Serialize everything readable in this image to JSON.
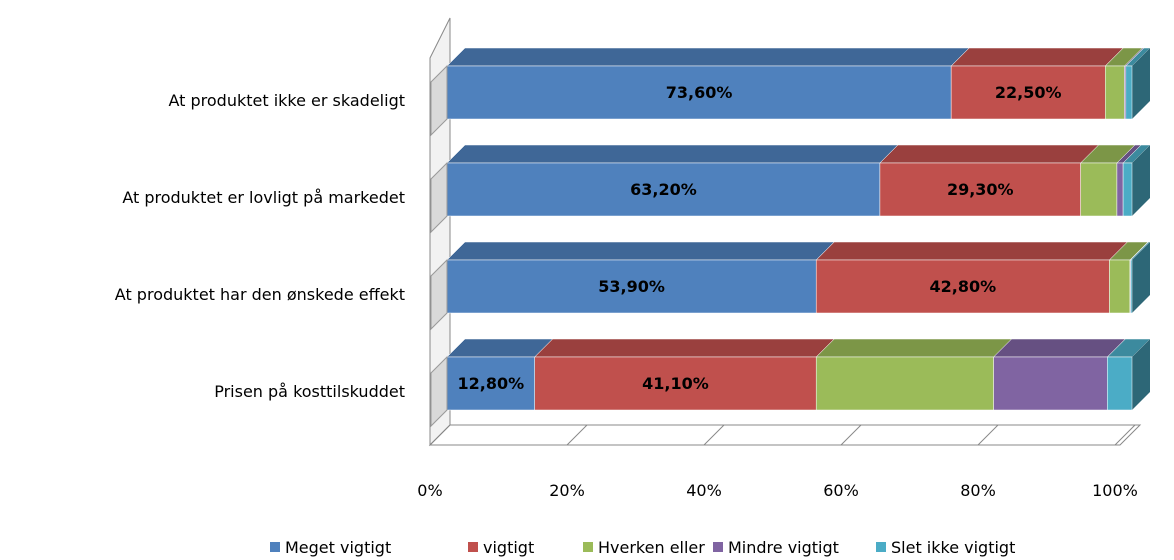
{
  "chart_data": {
    "type": "bar",
    "orientation": "horizontal",
    "stacked": true,
    "three_d": true,
    "categories": [
      "At produktet ikke er skadeligt",
      "At produktet er lovligt på markedet",
      "At produktet har den ønskede effekt",
      "Prisen på kosttilskuddet"
    ],
    "series": [
      {
        "name": "Meget vigtigt",
        "color": "#4f81bd",
        "values": [
          73.6,
          63.2,
          53.9,
          12.8
        ],
        "value_labels": [
          "73,60%",
          "63,20%",
          "53,90%",
          "12,80%"
        ]
      },
      {
        "name": "vigtigt",
        "color": "#c0504d",
        "values": [
          22.5,
          29.3,
          42.8,
          41.1
        ],
        "value_labels": [
          "22,50%",
          "29,30%",
          "42,80%",
          "41,10%"
        ]
      },
      {
        "name": "Hverken eller",
        "color": "#9bbb59",
        "values": [
          2.8,
          5.3,
          3.0,
          25.9
        ]
      },
      {
        "name": "Mindre vigtigt",
        "color": "#8064a2",
        "values": [
          0.2,
          0.9,
          0.1,
          16.6
        ]
      },
      {
        "name": "Slet ikke vigtigt",
        "color": "#4bacc6",
        "values": [
          0.9,
          1.3,
          0.2,
          3.6
        ]
      }
    ],
    "xlim": [
      0,
      100
    ],
    "xticks": [
      {
        "value": 0,
        "label": "0%"
      },
      {
        "value": 20,
        "label": "20%"
      },
      {
        "value": 40,
        "label": "40%"
      },
      {
        "value": 60,
        "label": "60%"
      },
      {
        "value": 80,
        "label": "80%"
      },
      {
        "value": 100,
        "label": "100%"
      }
    ],
    "legend": "bottom"
  }
}
